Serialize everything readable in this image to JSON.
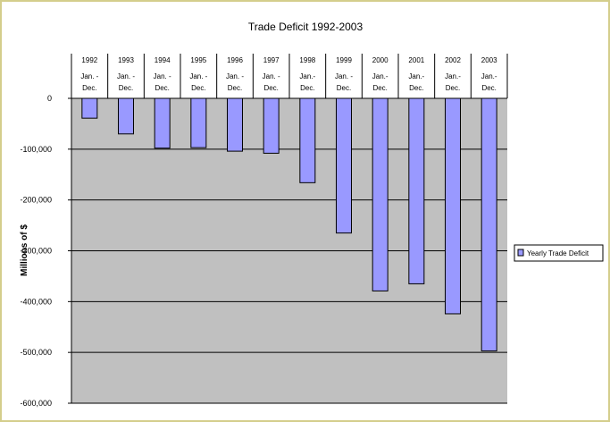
{
  "chart_data": {
    "type": "bar",
    "title": "Trade Deficit 1992-2003",
    "ylabel": "Millions of $",
    "xlabel": "",
    "categories": [
      "1992",
      "1993",
      "1994",
      "1995",
      "1996",
      "1997",
      "1998",
      "1999",
      "2000",
      "2001",
      "2002",
      "2003"
    ],
    "period_labels": [
      "Jan. - Dec.",
      "Jan. - Dec.",
      "Jan. - Dec.",
      "Jan. - Dec.",
      "Jan. - Dec.",
      "Jan. - Dec.",
      "Jan.- Dec.",
      "Jan. - Dec.",
      "Jan.- Dec.",
      "Jan.- Dec.",
      "Jan.- Dec.",
      "Jan.- Dec."
    ],
    "series": [
      {
        "name": "Yearly Trade Deficit",
        "values": [
          -39000,
          -70000,
          -98000,
          -97000,
          -104000,
          -108000,
          -166000,
          -265000,
          -379000,
          -365000,
          -424000,
          -497000
        ]
      }
    ],
    "ylim": [
      -600000,
      0
    ],
    "yticks": [
      0,
      -100000,
      -200000,
      -300000,
      -400000,
      -500000,
      -600000
    ],
    "ytick_labels": [
      "0",
      "-100,000",
      "-200,000",
      "-300,000",
      "-400,000",
      "-500,000",
      "-600,000"
    ],
    "grid": true,
    "legend_position": "right",
    "colors": {
      "bar": "#9999ff",
      "plot_background": "#c0c0c0",
      "frame": "#d4ce8c"
    }
  }
}
